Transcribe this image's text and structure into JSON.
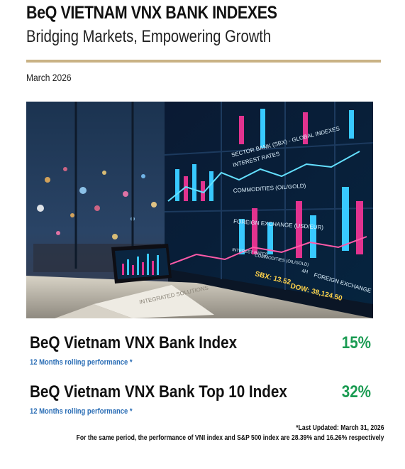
{
  "header": {
    "title": "BeQ VIETNAM VNX BANK INDEXES",
    "subtitle": "Bridging Markets, Empowering Growth",
    "date": "March 2026"
  },
  "hero": {
    "screen_labels": [
      "SECTOR BANK (SBX) - GLOBAL INDEXES",
      "INTEREST RATES",
      "COMMODITIES (OIL/GOLD)",
      "FOREIGN EXCHANGE (USD/EUR)",
      "INTEREST RATES",
      "COMMODITIES (OIL/GOLD)",
      "4H",
      "FOREIGN EXCHANGE",
      "SBX: 13.52",
      "DOW: 38,124.50",
      "INTEGRATED SOLUTIONS"
    ],
    "colors": {
      "accent_magenta": "#e2338f",
      "accent_cyan": "#38c9ff",
      "screen_bg": "#0a1a33"
    }
  },
  "indexes": [
    {
      "name": "BeQ Vietnam VNX Bank Index",
      "value": "15%",
      "note": "12 Months rolling performance *"
    },
    {
      "name": "BeQ Vietnam VNX Bank Top 10 Index",
      "value": "32%",
      "note": "12 Months rolling performance *"
    }
  ],
  "footer": {
    "updated": "*Last Updated: March 31, 2026",
    "comparison": "For the same period, the performance of VNI index and S&P 500 index are 28.39% and 16.26% respectively"
  },
  "colors": {
    "gold_rule": "#c9b285",
    "performance_green": "#1a9b52",
    "note_blue": "#2a6db5"
  }
}
